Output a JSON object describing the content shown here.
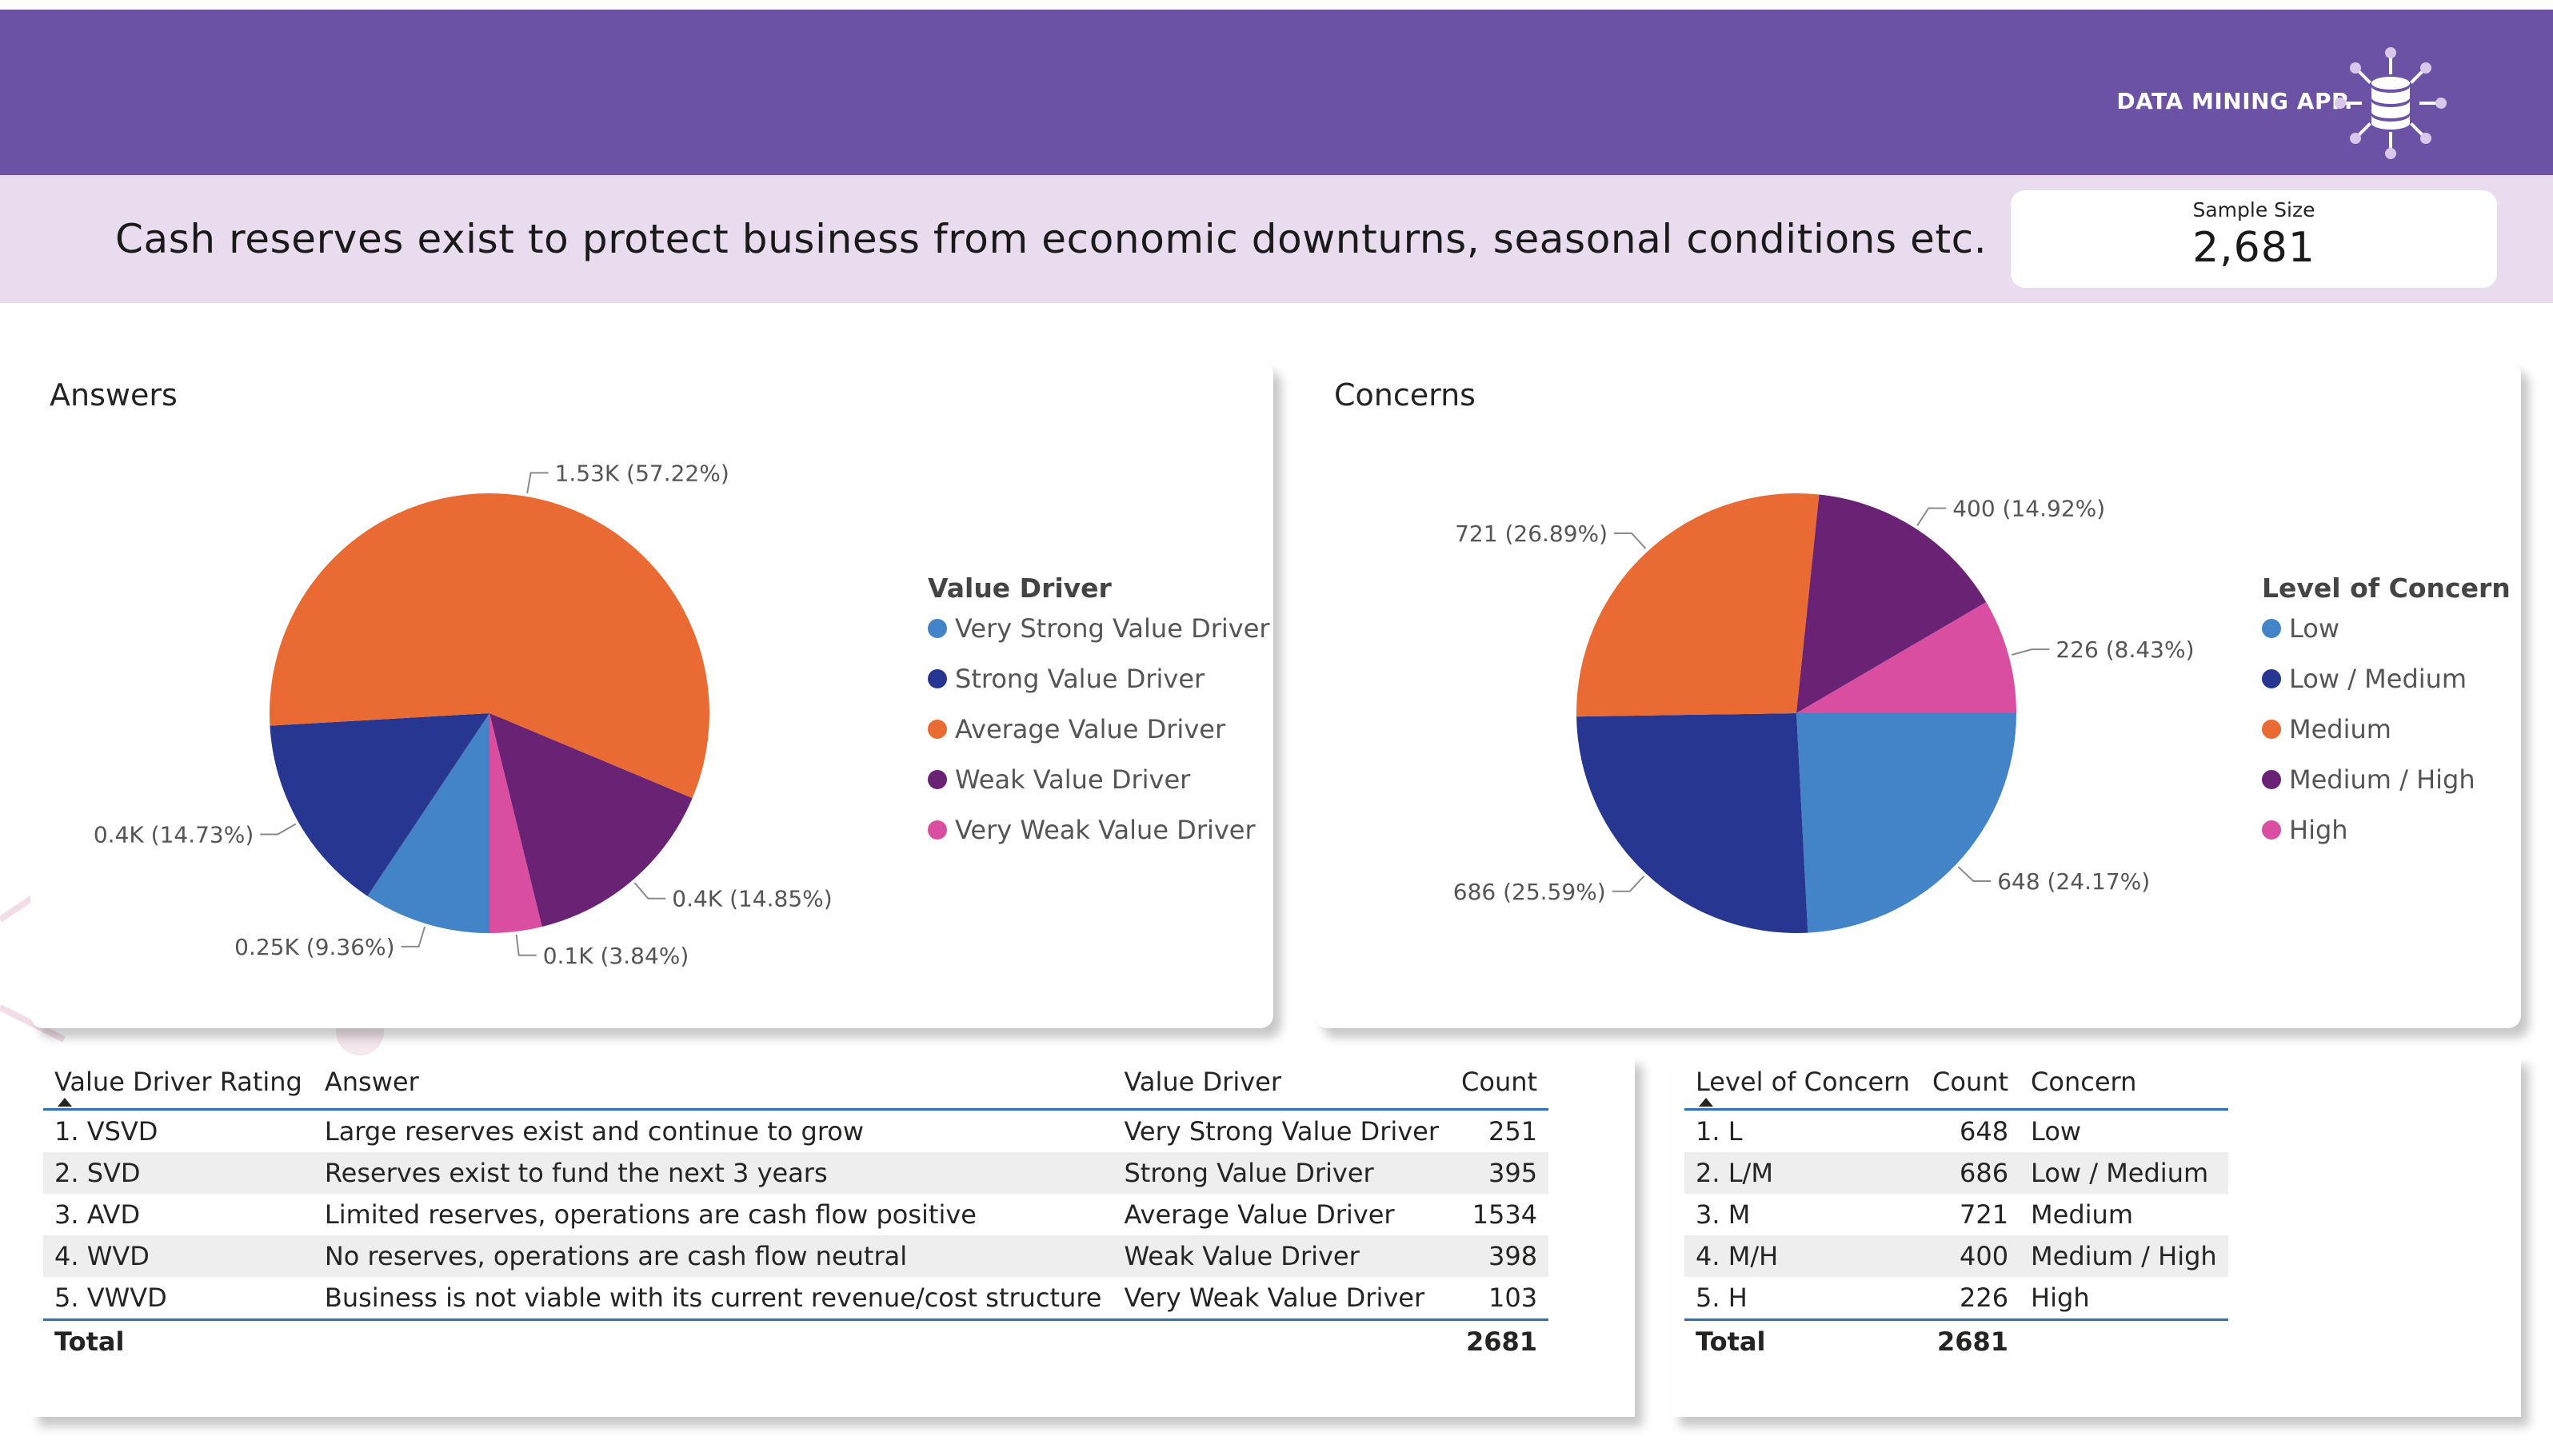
{
  "header": {
    "brand": "DATA MINING APP.",
    "question": "Cash reserves exist to protect business from economic downturns, seasonal conditions etc.",
    "sample_label": "Sample Size",
    "sample_value": "2,681"
  },
  "colors": {
    "header": "#6b52a4",
    "subheader": "#e8dcee",
    "very_strong": "#4384c8",
    "strong": "#263691",
    "average": "#e96b33",
    "weak": "#6a2275",
    "very_weak": "#d94ea0"
  },
  "answers_card": {
    "title": "Answers",
    "legend_title": "Value Driver",
    "legend": [
      "Very Strong Value Driver",
      "Strong Value Driver",
      "Average Value Driver",
      "Weak Value Driver",
      "Very Weak Value Driver"
    ]
  },
  "concerns_card": {
    "title": "Concerns",
    "legend_title": "Level of Concern",
    "legend": [
      "Low",
      "Low / Medium",
      "Medium",
      "Medium / High",
      "High"
    ]
  },
  "chart_data": [
    {
      "type": "pie",
      "title": "Answers",
      "legend_title": "Value Driver",
      "categories": [
        "Very Strong Value Driver",
        "Strong Value Driver",
        "Average Value Driver",
        "Weak Value Driver",
        "Very Weak Value Driver"
      ],
      "values": [
        251,
        395,
        1534,
        398,
        103
      ],
      "labels": [
        "0.25K (9.36%)",
        "0.4K (14.73%)",
        "1.53K (57.22%)",
        "0.4K (14.85%)",
        "0.1K (3.84%)"
      ],
      "colors": [
        "#4384c8",
        "#263691",
        "#e96b33",
        "#6a2275",
        "#d94ea0"
      ],
      "start_angle_deg": 90
    },
    {
      "type": "pie",
      "title": "Concerns",
      "legend_title": "Level of Concern",
      "categories": [
        "Low",
        "Low / Medium",
        "Medium",
        "Medium / High",
        "High"
      ],
      "values": [
        648,
        686,
        721,
        400,
        226
      ],
      "labels": [
        "648 (24.17%)",
        "686 (25.59%)",
        "721 (26.89%)",
        "400 (14.92%)",
        "226 (8.43%)"
      ],
      "colors": [
        "#4384c8",
        "#263691",
        "#e96b33",
        "#6a2275",
        "#d94ea0"
      ],
      "start_angle_deg": 0
    }
  ],
  "value_table": {
    "headers": [
      "Value Driver Rating",
      "Answer",
      "Value Driver",
      "Count"
    ],
    "rows": [
      [
        "1. VSVD",
        "Large reserves exist and continue to grow",
        "Very Strong Value Driver",
        "251"
      ],
      [
        "2. SVD",
        "Reserves exist to fund the next 3 years",
        "Strong Value Driver",
        "395"
      ],
      [
        "3. AVD",
        "Limited reserves, operations are cash flow positive",
        "Average Value Driver",
        "1534"
      ],
      [
        "4. WVD",
        "No reserves, operations are cash flow neutral",
        "Weak Value Driver",
        "398"
      ],
      [
        "5. VWVD",
        "Business is not viable with its current revenue/cost structure",
        "Very Weak Value Driver",
        "103"
      ]
    ],
    "total_label": "Total",
    "total_value": "2681"
  },
  "concern_table": {
    "headers": [
      "Level of Concern",
      "Count",
      "Concern"
    ],
    "rows": [
      [
        "1. L",
        "648",
        "Low"
      ],
      [
        "2. L/M",
        "686",
        "Low / Medium"
      ],
      [
        "3. M",
        "721",
        "Medium"
      ],
      [
        "4. M/H",
        "400",
        "Medium / High"
      ],
      [
        "5. H",
        "226",
        "High"
      ]
    ],
    "total_label": "Total",
    "total_value": "2681"
  }
}
